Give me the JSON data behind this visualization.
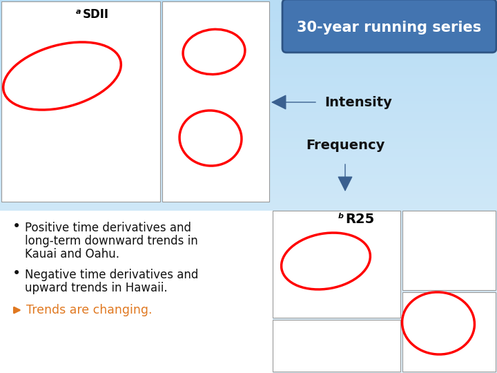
{
  "bg_color_top": "#b8ddf5",
  "bg_color_bottom": "#e0f0fa",
  "title_box_text": "30-year running series",
  "title_box_bg": "#3d6fad",
  "title_box_text_color": "#ffffff",
  "intensity_label": "Intensity",
  "intensity_arrow_color": "#3a6090",
  "frequency_label": "Frequency",
  "frequency_arrow_color": "#3a6090",
  "bullet1_line1": "Positive time derivatives and",
  "bullet1_line2": "long-term downward trends in",
  "bullet1_line3": "Kauai and Oahu.",
  "bullet2_line1": "Negative time derivatives and",
  "bullet2_line2": "upward trends in Hawaii.",
  "arrow_label": "Trends are changing.",
  "arrow_label_color": "#e07820",
  "bullet_color": "#111111",
  "font_size_bullet": 12,
  "font_size_title": 15,
  "font_size_intensity": 14,
  "map_border_color": "#999999",
  "white": "#ffffff",
  "sdii_label": "SDII",
  "r25_label": "R25",
  "label_a": "a",
  "label_b": "b"
}
